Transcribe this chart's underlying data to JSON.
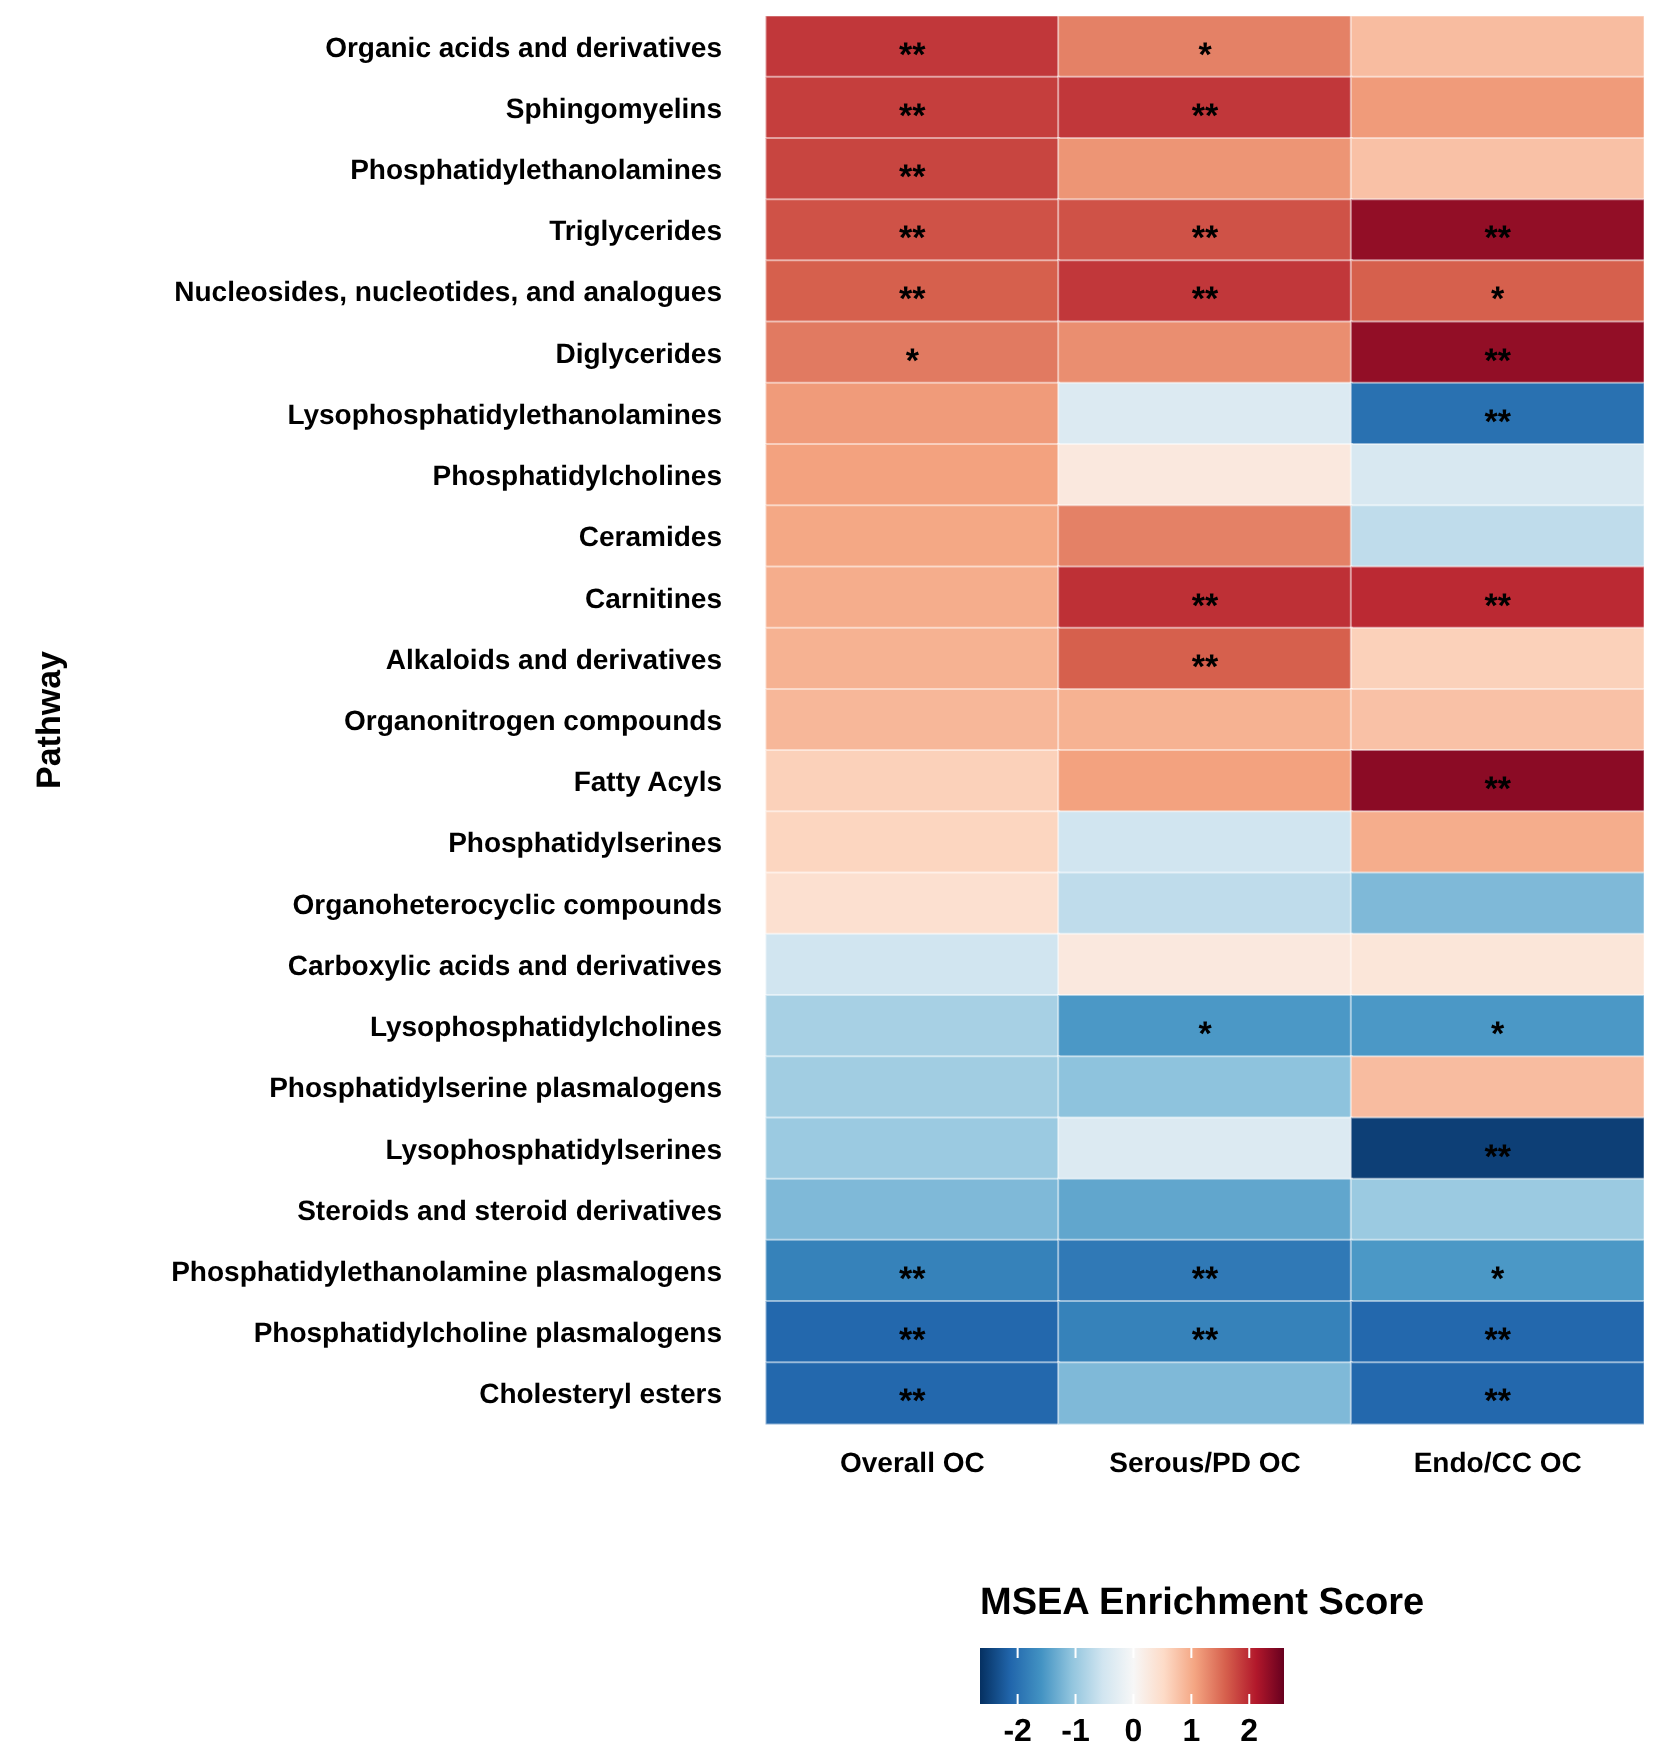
{
  "chart_data": {
    "type": "heatmap",
    "ylabel": "Pathway",
    "clabel": "MSEA Enrichment Score",
    "categories": [
      "Overall OC",
      "Serous/PD OC",
      "Endo/CC OC"
    ],
    "y_categories": [
      "Organic acids and derivatives",
      "Sphingomyelins",
      "Phosphatidylethanolamines",
      "Triglycerides",
      "Nucleosides, nucleotides, and analogues",
      "Diglycerides",
      "Lysophosphatidylethanolamines",
      "Phosphatidylcholines",
      "Ceramides",
      "Carnitines",
      "Alkaloids and derivatives",
      "Organonitrogen compounds",
      "Fatty Acyls",
      "Phosphatidylserines",
      "Organoheterocyclic compounds",
      "Carboxylic acids and derivatives",
      "Lysophosphatidylcholines",
      "Phosphatidylserine plasmalogens",
      "Lysophosphatidylserines",
      "Steroids and steroid derivatives",
      "Phosphatidylethanolamine plasmalogens",
      "Phosphatidylcholine plasmalogens",
      "Cholesteryl esters"
    ],
    "cells": [
      [
        1.85,
        1.3,
        0.8
      ],
      [
        1.8,
        1.85,
        1.1
      ],
      [
        1.75,
        1.15,
        0.75
      ],
      [
        1.65,
        1.65,
        2.3
      ],
      [
        1.55,
        1.85,
        1.55
      ],
      [
        1.35,
        1.2,
        2.3
      ],
      [
        1.1,
        -0.4,
        -2.0
      ],
      [
        1.05,
        0.25,
        -0.45
      ],
      [
        1.0,
        1.3,
        -0.7
      ],
      [
        0.95,
        1.9,
        1.95
      ],
      [
        0.9,
        1.55,
        0.6
      ],
      [
        0.85,
        0.9,
        0.75
      ],
      [
        0.6,
        1.05,
        2.35
      ],
      [
        0.55,
        -0.55,
        0.95
      ],
      [
        0.4,
        -0.7,
        -1.2
      ],
      [
        -0.55,
        0.25,
        0.3
      ],
      [
        -0.9,
        -1.55,
        -1.55
      ],
      [
        -0.95,
        -1.1,
        0.8
      ],
      [
        -1.0,
        -0.4,
        -2.5
      ],
      [
        -1.2,
        -1.4,
        -1.0
      ],
      [
        -1.8,
        -1.9,
        -1.55
      ],
      [
        -2.1,
        -1.8,
        -2.1
      ],
      [
        -2.1,
        -1.2,
        -2.1
      ]
    ],
    "cell_labels": [
      [
        "**",
        "*",
        null
      ],
      [
        "**",
        "**",
        null
      ],
      [
        "**",
        null,
        null
      ],
      [
        "**",
        "**",
        "**"
      ],
      [
        "**",
        "**",
        "*"
      ],
      [
        "*",
        null,
        "**"
      ],
      [
        null,
        null,
        "**"
      ],
      [
        null,
        null,
        null
      ],
      [
        null,
        null,
        null
      ],
      [
        null,
        "**",
        "**"
      ],
      [
        null,
        "**",
        null
      ],
      [
        null,
        null,
        null
      ],
      [
        null,
        null,
        "**"
      ],
      [
        null,
        null,
        null
      ],
      [
        null,
        null,
        null
      ],
      [
        null,
        null,
        null
      ],
      [
        null,
        "*",
        "*"
      ],
      [
        null,
        null,
        null
      ],
      [
        null,
        null,
        "**"
      ],
      [
        null,
        null,
        null
      ],
      [
        "**",
        "**",
        "*"
      ],
      [
        "**",
        "**",
        "**"
      ],
      [
        "**",
        null,
        "**"
      ]
    ],
    "clim": [
      -2.65,
      2.6
    ],
    "cticks": [
      -2,
      -1,
      0,
      1,
      2
    ]
  }
}
